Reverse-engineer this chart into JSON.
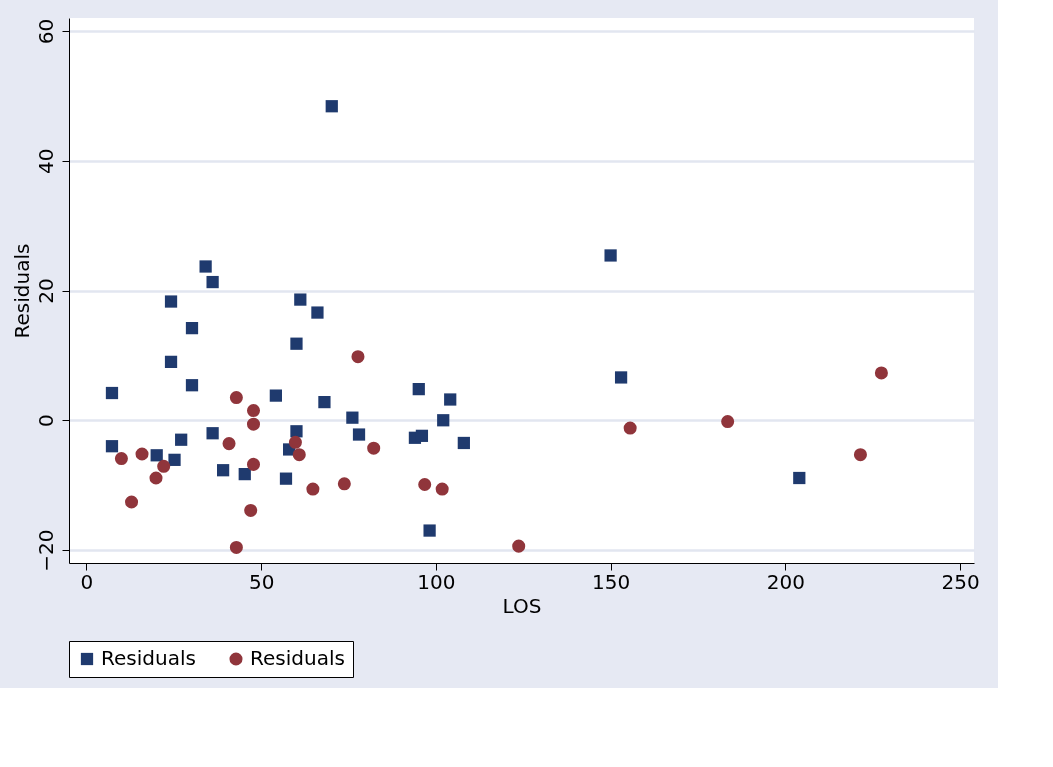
{
  "chart_data": {
    "type": "scatter",
    "xlabel": "LOS",
    "ylabel": "Residuals",
    "xlim": [
      -5,
      254
    ],
    "xticks": [
      0,
      50,
      100,
      150,
      200,
      250
    ],
    "ylim": [
      -22,
      62
    ],
    "yticks": [
      -20,
      0,
      20,
      40,
      60
    ],
    "grid": "y",
    "legend": "bottom",
    "series": [
      {
        "name": "Residuals",
        "color": "#1f3a6e",
        "marker": "square",
        "x": [
          34.1,
          36.1,
          24.2,
          61.2,
          66.1,
          30.2,
          60.1,
          24.2,
          30.2,
          7.3,
          54.2,
          68.1,
          76.1,
          7.3,
          27.1,
          36.1,
          60.1,
          78.0,
          58.0,
          20.1,
          25.2,
          39.1,
          45.3,
          57.1,
          70.2,
          95.1,
          104.1,
          102.1,
          94.0,
          96.0,
          108.0,
          98.2,
          150.0,
          153.0,
          204.0
        ],
        "values": [
          23.7,
          21.3,
          18.3,
          18.6,
          16.6,
          14.2,
          11.8,
          9.0,
          5.4,
          4.2,
          3.8,
          2.8,
          0.4,
          -4.0,
          -3.0,
          -2.0,
          -1.7,
          -2.2,
          -4.5,
          -5.4,
          -6.1,
          -7.7,
          -8.3,
          -9.0,
          48.4,
          4.8,
          3.2,
          0.0,
          -2.7,
          -2.4,
          -3.5,
          -17.0,
          25.4,
          6.6,
          -8.9
        ]
      },
      {
        "name": "Residuals",
        "color": "#90353b",
        "marker": "circle",
        "x": [
          77.7,
          42.9,
          47.8,
          47.8,
          40.8,
          59.8,
          60.9,
          82.2,
          10.0,
          15.9,
          22.1,
          19.9,
          47.8,
          12.9,
          64.8,
          73.8,
          47.0,
          42.9,
          96.8,
          101.8,
          123.7,
          155.6,
          183.5,
          227.5,
          221.5
        ],
        "values": [
          9.8,
          3.5,
          1.5,
          -0.6,
          -3.6,
          -3.4,
          -5.3,
          -4.3,
          -5.9,
          -5.2,
          -7.1,
          -8.9,
          -6.8,
          -12.6,
          -10.6,
          -9.8,
          -13.9,
          -19.6,
          -9.9,
          -10.6,
          -19.4,
          -1.2,
          -0.2,
          7.3,
          -5.3
        ]
      }
    ]
  }
}
